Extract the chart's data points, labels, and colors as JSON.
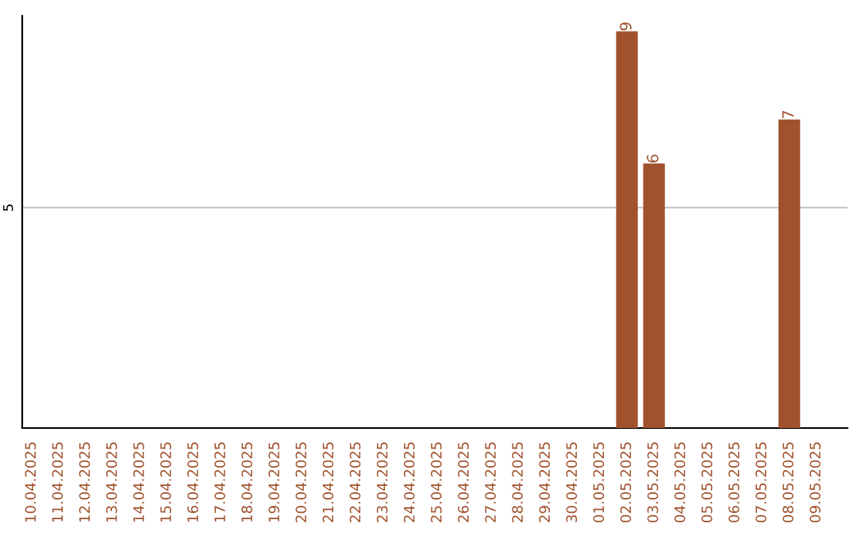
{
  "chart_data": {
    "type": "bar",
    "categories": [
      "10.04.2025",
      "11.04.2025",
      "12.04.2025",
      "13.04.2025",
      "14.04.2025",
      "15.04.2025",
      "16.04.2025",
      "17.04.2025",
      "18.04.2025",
      "19.04.2025",
      "20.04.2025",
      "21.04.2025",
      "22.04.2025",
      "23.04.2025",
      "24.04.2025",
      "25.04.2025",
      "26.04.2025",
      "27.04.2025",
      "28.04.2025",
      "29.04.2025",
      "30.04.2025",
      "01.05.2025",
      "02.05.2025",
      "03.05.2025",
      "04.05.2025",
      "05.05.2025",
      "06.05.2025",
      "07.05.2025",
      "08.05.2025",
      "09.05.2025"
    ],
    "values": [
      null,
      null,
      null,
      null,
      null,
      null,
      null,
      null,
      null,
      null,
      null,
      null,
      null,
      null,
      null,
      null,
      null,
      null,
      null,
      null,
      null,
      null,
      9,
      6,
      null,
      null,
      null,
      null,
      7,
      null
    ],
    "value_labels": [
      null,
      null,
      null,
      null,
      null,
      null,
      null,
      null,
      null,
      null,
      null,
      null,
      null,
      null,
      null,
      null,
      null,
      null,
      null,
      null,
      null,
      null,
      "9",
      "6",
      null,
      null,
      null,
      null,
      "7",
      null
    ],
    "ylim": [
      0,
      9.35
    ],
    "yticks": [
      5
    ],
    "grid": "y",
    "color": "#a0522d"
  }
}
